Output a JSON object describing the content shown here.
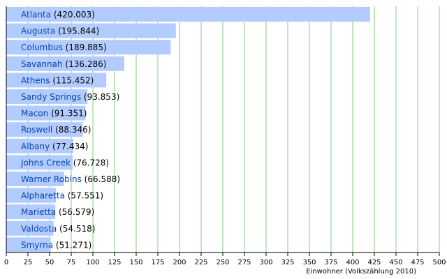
{
  "chart_data": {
    "type": "bar",
    "orientation": "horizontal",
    "categories": [
      "Atlanta",
      "Augusta",
      "Columbus",
      "Savannah",
      "Athens",
      "Sandy Springs",
      "Macon",
      "Roswell",
      "Albany",
      "Johns Creek",
      "Warner Robins",
      "Alpharetta",
      "Marietta",
      "Valdosta",
      "Smyrna"
    ],
    "value_labels": [
      "(420.003)",
      "(195.844)",
      "(189.885)",
      "(136.286)",
      "(115.452)",
      "(93.853)",
      "(91.351)",
      "(88.346)",
      "(77.434)",
      "(76.728)",
      "(66.588)",
      "(57.551)",
      "(56.579)",
      "(54.518)",
      "(51.271)"
    ],
    "values": [
      420.003,
      195.844,
      189.885,
      136.286,
      115.452,
      93.853,
      91.351,
      88.346,
      77.434,
      76.728,
      66.588,
      57.551,
      56.579,
      54.518,
      51.271
    ],
    "xlabel": "Einwohner (Volkszählung 2010)",
    "xlim": [
      0,
      500
    ],
    "xticks": [
      "0",
      "25",
      "50",
      "75",
      "100",
      "125",
      "150",
      "175",
      "200",
      "225",
      "250",
      "275",
      "300",
      "325",
      "350",
      "375",
      "400",
      "425",
      "450",
      "475",
      "500"
    ],
    "grid": "vertical",
    "colors": {
      "bar": "#b3ccff",
      "grid": "#7fcc7f",
      "axis": "#000000",
      "category_label": "#0645ad",
      "value_label": "#000000"
    }
  }
}
